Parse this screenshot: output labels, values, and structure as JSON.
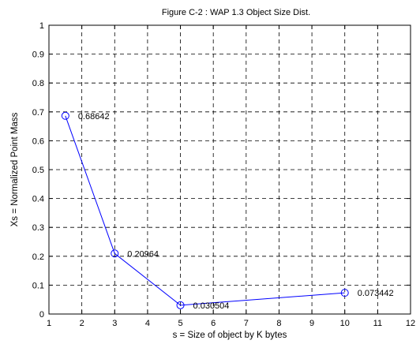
{
  "chart_data": {
    "type": "line",
    "title": "Figure C-2 : WAP 1.3 Object Size Dist.",
    "xlabel": "s = Size of object by K bytes",
    "ylabel": "Xs = Normalized Point Mass",
    "xlim": [
      1,
      12
    ],
    "ylim": [
      0,
      1
    ],
    "x_ticks": [
      1,
      2,
      3,
      4,
      5,
      6,
      7,
      8,
      9,
      10,
      11,
      12
    ],
    "x_tick_labels": [
      "1",
      "2",
      "3",
      "4",
      "5",
      "6",
      "7",
      "8",
      "9",
      "10",
      "11",
      "12"
    ],
    "y_ticks": [
      0,
      0.1,
      0.2,
      0.3,
      0.4,
      0.5,
      0.6,
      0.7,
      0.8,
      0.9,
      1
    ],
    "y_tick_labels": [
      "0",
      "0.1",
      "0.2",
      "0.3",
      "0.4",
      "0.5",
      "0.6",
      "0.7",
      "0.8",
      "0.9",
      "1"
    ],
    "grid": true,
    "series": [
      {
        "x": [
          1.5,
          3,
          5,
          10
        ],
        "values": [
          0.68642,
          0.20964,
          0.030504,
          0.073442
        ],
        "marker": "circle",
        "color": "#0000ff"
      }
    ],
    "annotations": [
      "0.68642",
      "0.20964",
      "0.030504",
      "0.073442"
    ]
  }
}
